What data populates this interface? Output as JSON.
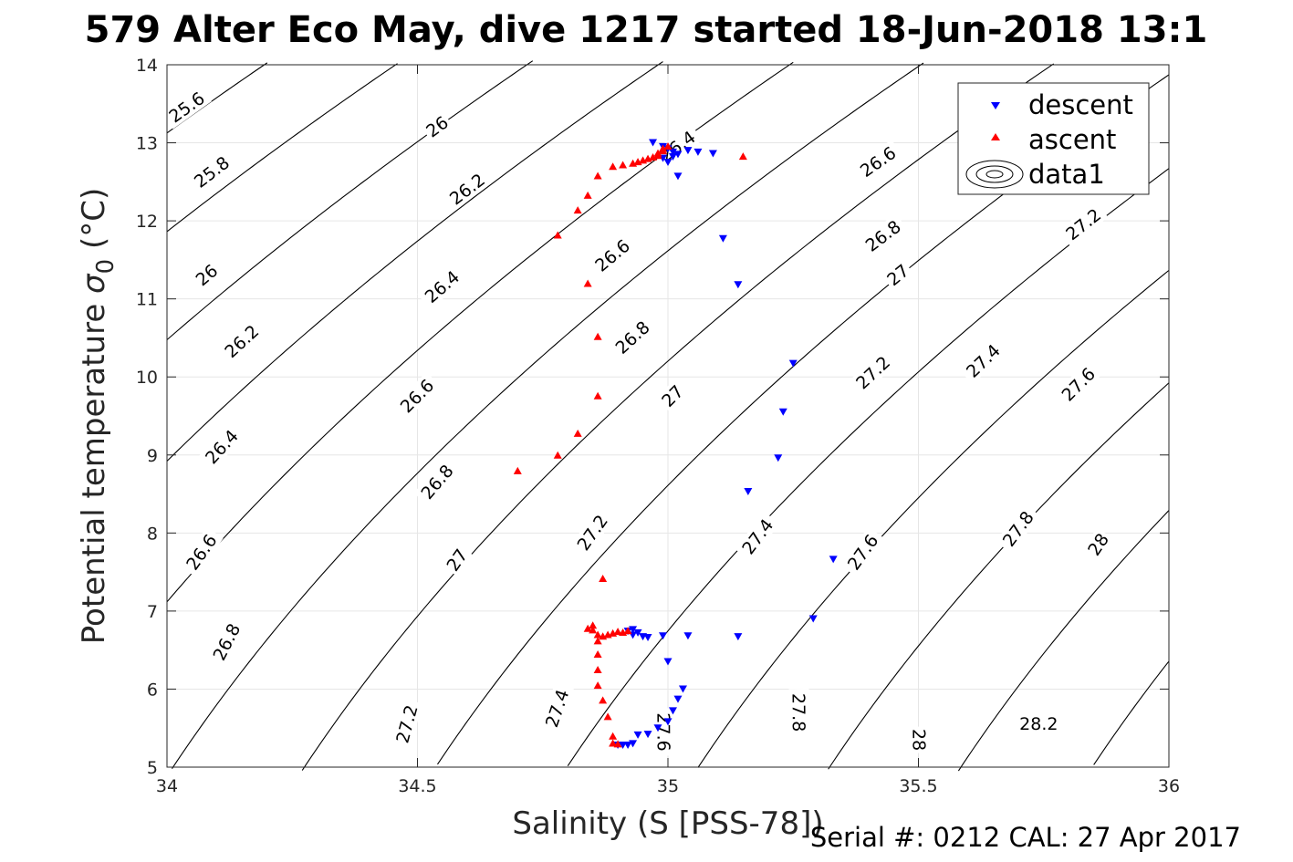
{
  "chart_data": {
    "type": "scatter",
    "title": "579 Alter Eco May, dive 1217 started 18-Jun-2018 13:1",
    "xlabel": "Salinity (S [PSS-78])",
    "ylabel": "Potential temperature σ0 (°C)",
    "ylabel_main": "Potential temperature ",
    "ylabel_sigma": "σ",
    "ylabel_sub": "0",
    "ylabel_unit": " (°C)",
    "xlim": [
      34,
      36
    ],
    "ylim": [
      5,
      14
    ],
    "xticks": [
      34,
      34.5,
      35,
      35.5,
      36
    ],
    "xtick_labels": [
      "34",
      "34.5",
      "35",
      "35.5",
      "36"
    ],
    "yticks": [
      5,
      6,
      7,
      8,
      9,
      10,
      11,
      12,
      13,
      14
    ],
    "ytick_labels": [
      "5",
      "6",
      "7",
      "8",
      "9",
      "10",
      "11",
      "12",
      "13",
      "14"
    ],
    "grid": true,
    "legend_position": "top-right",
    "contours": {
      "levels": [
        25.6,
        25.8,
        26,
        26.2,
        26.4,
        26.6,
        26.8,
        27,
        27.2,
        27.4,
        27.6,
        27.8,
        28,
        28.2
      ],
      "level_labels": [
        "25.6",
        "25.8",
        "26",
        "26.2",
        "26.4",
        "26.6",
        "26.8",
        "27",
        "27.2",
        "27.4",
        "27.6",
        "27.8",
        "28",
        "28.2"
      ],
      "labels": [
        {
          "text": "25.6",
          "s": 34.04,
          "t": 13.45
        },
        {
          "text": "25.8",
          "s": 34.09,
          "t": 12.62
        },
        {
          "text": "26",
          "s": 34.08,
          "t": 11.3
        },
        {
          "text": "26.2",
          "s": 34.15,
          "t": 10.45
        },
        {
          "text": "26.4",
          "s": 34.11,
          "t": 9.1
        },
        {
          "text": "26.6",
          "s": 34.07,
          "t": 7.75
        },
        {
          "text": "26.8",
          "s": 34.12,
          "t": 6.6
        },
        {
          "text": "27.2",
          "s": 34.48,
          "t": 5.55
        },
        {
          "text": "26",
          "s": 34.54,
          "t": 13.2
        },
        {
          "text": "26.2",
          "s": 34.6,
          "t": 12.4
        },
        {
          "text": "26.4",
          "s": 34.55,
          "t": 11.15
        },
        {
          "text": "26.6",
          "s": 34.5,
          "t": 9.75
        },
        {
          "text": "26.8",
          "s": 34.54,
          "t": 8.65
        },
        {
          "text": "27",
          "s": 34.58,
          "t": 7.65
        },
        {
          "text": "27.4",
          "s": 34.78,
          "t": 5.75
        },
        {
          "text": "26.4",
          "s": 35.02,
          "t": 12.95
        },
        {
          "text": "26.6",
          "s": 34.89,
          "t": 11.55
        },
        {
          "text": "26.8",
          "s": 34.93,
          "t": 10.5
        },
        {
          "text": "27",
          "s": 35.01,
          "t": 9.75
        },
        {
          "text": "27.2",
          "s": 34.85,
          "t": 8.0
        },
        {
          "text": "27.6",
          "s": 34.99,
          "t": 5.45
        },
        {
          "text": "27.4",
          "s": 35.18,
          "t": 7.95
        },
        {
          "text": "27.6",
          "s": 35.39,
          "t": 7.75
        },
        {
          "text": "27.8",
          "s": 35.26,
          "t": 5.7
        },
        {
          "text": "27.2",
          "s": 35.41,
          "t": 10.05
        },
        {
          "text": "27.4",
          "s": 35.63,
          "t": 10.2
        },
        {
          "text": "27.6",
          "s": 35.82,
          "t": 9.9
        },
        {
          "text": "27.8",
          "s": 35.7,
          "t": 8.05
        },
        {
          "text": "28",
          "s": 35.5,
          "t": 5.35
        },
        {
          "text": "28",
          "s": 35.86,
          "t": 7.85
        },
        {
          "text": "28.2",
          "s": 35.74,
          "t": 5.55
        },
        {
          "text": "26.6",
          "s": 35.42,
          "t": 12.75
        },
        {
          "text": "26.8",
          "s": 35.43,
          "t": 11.8
        },
        {
          "text": "27",
          "s": 35.46,
          "t": 11.3
        },
        {
          "text": "27.2",
          "s": 35.83,
          "t": 11.95
        }
      ]
    },
    "series": [
      {
        "name": "descent",
        "color": "#0000ff",
        "marker": "triangle-down",
        "points": [
          [
            34.97,
            13.0
          ],
          [
            34.99,
            12.95
          ],
          [
            35.0,
            12.92
          ],
          [
            35.01,
            12.88
          ],
          [
            35.02,
            12.85
          ],
          [
            34.99,
            12.8
          ],
          [
            35.0,
            12.75
          ],
          [
            35.01,
            12.82
          ],
          [
            35.04,
            12.9
          ],
          [
            35.06,
            12.88
          ],
          [
            35.09,
            12.86
          ],
          [
            35.02,
            12.57
          ],
          [
            35.11,
            11.77
          ],
          [
            35.14,
            11.18
          ],
          [
            35.25,
            10.17
          ],
          [
            35.23,
            9.55
          ],
          [
            35.22,
            8.96
          ],
          [
            35.16,
            8.53
          ],
          [
            35.33,
            7.66
          ],
          [
            35.29,
            6.9
          ],
          [
            35.14,
            6.67
          ],
          [
            35.04,
            6.68
          ],
          [
            34.99,
            6.68
          ],
          [
            34.96,
            6.66
          ],
          [
            34.95,
            6.67
          ],
          [
            34.93,
            6.69
          ],
          [
            34.94,
            6.72
          ],
          [
            34.92,
            6.74
          ],
          [
            34.93,
            6.76
          ],
          [
            35.0,
            6.35
          ],
          [
            35.03,
            6.0
          ],
          [
            35.02,
            5.87
          ],
          [
            35.01,
            5.72
          ],
          [
            35.0,
            5.58
          ],
          [
            34.98,
            5.5
          ],
          [
            34.96,
            5.42
          ],
          [
            34.94,
            5.41
          ],
          [
            34.93,
            5.3
          ],
          [
            34.92,
            5.28
          ],
          [
            34.91,
            5.28
          ],
          [
            34.9,
            5.28
          ]
        ]
      },
      {
        "name": "ascent",
        "color": "#ff0000",
        "marker": "triangle-up",
        "points": [
          [
            34.9,
            5.3
          ],
          [
            34.89,
            5.31
          ],
          [
            34.89,
            5.4
          ],
          [
            34.88,
            5.65
          ],
          [
            34.87,
            5.86
          ],
          [
            34.86,
            6.05
          ],
          [
            34.86,
            6.25
          ],
          [
            34.86,
            6.45
          ],
          [
            34.86,
            6.62
          ],
          [
            34.85,
            6.76
          ],
          [
            34.85,
            6.82
          ],
          [
            34.84,
            6.78
          ],
          [
            34.86,
            6.7
          ],
          [
            34.87,
            6.68
          ],
          [
            34.88,
            6.7
          ],
          [
            34.89,
            6.72
          ],
          [
            34.9,
            6.74
          ],
          [
            34.91,
            6.73
          ],
          [
            34.92,
            6.75
          ],
          [
            34.87,
            7.42
          ],
          [
            34.7,
            8.8
          ],
          [
            34.78,
            9.0
          ],
          [
            34.82,
            9.28
          ],
          [
            34.86,
            9.76
          ],
          [
            34.86,
            10.52
          ],
          [
            34.84,
            11.2
          ],
          [
            34.78,
            11.82
          ],
          [
            34.82,
            12.14
          ],
          [
            34.84,
            12.33
          ],
          [
            34.86,
            12.58
          ],
          [
            34.89,
            12.7
          ],
          [
            34.91,
            12.72
          ],
          [
            34.93,
            12.74
          ],
          [
            34.94,
            12.76
          ],
          [
            34.95,
            12.78
          ],
          [
            34.96,
            12.8
          ],
          [
            34.97,
            12.82
          ],
          [
            34.98,
            12.84
          ],
          [
            34.98,
            12.87
          ],
          [
            34.99,
            12.9
          ],
          [
            34.99,
            12.93
          ],
          [
            35.0,
            12.96
          ],
          [
            35.15,
            12.83
          ]
        ]
      }
    ],
    "legend": {
      "items": [
        {
          "label": "descent",
          "marker": "triangle-down",
          "color": "#0000ff"
        },
        {
          "label": "ascent",
          "marker": "triangle-up",
          "color": "#ff0000"
        },
        {
          "label": "data1",
          "marker": "contour",
          "color": "#000000"
        }
      ]
    }
  },
  "footer": {
    "serial": "Serial #: 0212  CAL: 27 Apr 2017"
  }
}
